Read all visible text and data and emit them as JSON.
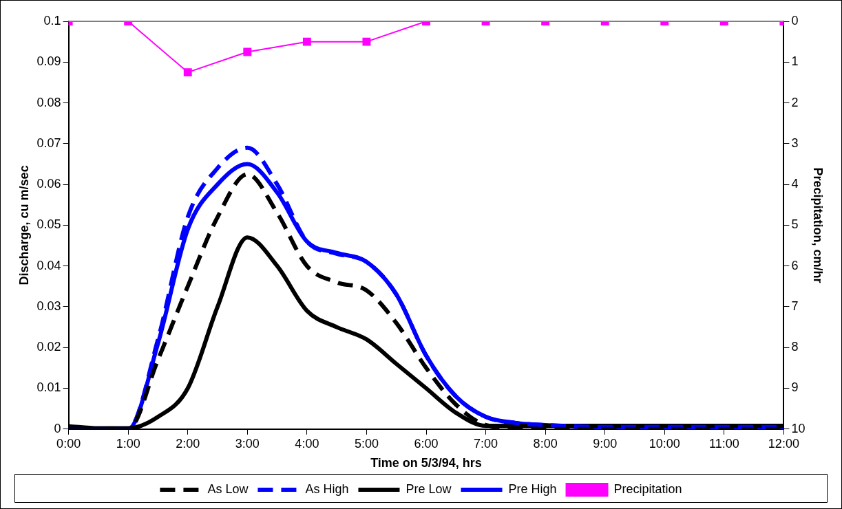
{
  "chart_data": {
    "type": "line",
    "xlabel": "Time on 5/3/94, hrs",
    "ylabel": "Discharge, cu m/sec",
    "y2label": "Precipitation, cm/hr",
    "x": [
      0,
      0.5,
      1,
      1.5,
      2,
      2.5,
      3,
      3.5,
      4,
      4.5,
      5,
      5.5,
      6,
      6.5,
      7,
      7.5,
      8,
      9,
      10,
      11,
      12
    ],
    "series": [
      {
        "name": "As Low",
        "color": "#000000",
        "line_style": "dashed",
        "marker": "none",
        "values": [
          0,
          0,
          0,
          0.017,
          0.035,
          0.052,
          0.0625,
          0.053,
          0.04,
          0.036,
          0.034,
          0.026,
          0.015,
          0.006,
          0.001,
          0.0003,
          0,
          0,
          0,
          0,
          0
        ]
      },
      {
        "name": "As High",
        "color": "#0000ff",
        "line_style": "dashed",
        "marker": "none",
        "values": [
          0,
          0,
          0,
          0.022,
          0.052,
          0.064,
          0.069,
          0.06,
          0.046,
          0.043,
          0.041,
          0.033,
          0.018,
          0.008,
          0.003,
          0.0015,
          0.001,
          0.0005,
          0.0005,
          0.0005,
          0.0005
        ]
      },
      {
        "name": "Pre Low",
        "color": "#000000",
        "line_style": "solid",
        "marker": "none",
        "values": [
          0.0007,
          0.0002,
          0.0002,
          0.003,
          0.01,
          0.03,
          0.047,
          0.04,
          0.029,
          0.025,
          0.022,
          0.016,
          0.01,
          0.004,
          0.0008,
          0.0008,
          0.0008,
          0.0008,
          0.0008,
          0.0008,
          0.0008
        ]
      },
      {
        "name": "Pre High",
        "color": "#0000ff",
        "line_style": "solid",
        "marker": "none",
        "values": [
          0,
          0,
          0,
          0.021,
          0.049,
          0.06,
          0.065,
          0.058,
          0.046,
          0.0432,
          0.041,
          0.033,
          0.018,
          0.008,
          0.003,
          0.0015,
          0.001,
          0.0005,
          0.0005,
          0.0005,
          0.0005
        ]
      },
      {
        "name": "Precipitation",
        "color": "#ff00ff",
        "line_style": "solid",
        "marker": "square",
        "axis": "y2",
        "x": [
          0,
          1,
          2,
          3,
          4,
          5,
          6,
          7,
          8,
          9,
          10,
          11,
          12
        ],
        "values": [
          0,
          0,
          1.25,
          0.75,
          0.5,
          0.5,
          0,
          0,
          0,
          0,
          0,
          0,
          0
        ]
      }
    ],
    "xlim": [
      0,
      12
    ],
    "xticks": [
      {
        "value": 0,
        "label": "0:00"
      },
      {
        "value": 1,
        "label": "1:00"
      },
      {
        "value": 2,
        "label": "2:00"
      },
      {
        "value": 3,
        "label": "3:00"
      },
      {
        "value": 4,
        "label": "4:00"
      },
      {
        "value": 5,
        "label": "5:00"
      },
      {
        "value": 6,
        "label": "6:00"
      },
      {
        "value": 7,
        "label": "7:00"
      },
      {
        "value": 8,
        "label": "8:00"
      },
      {
        "value": 9,
        "label": "9:00"
      },
      {
        "value": 10,
        "label": "10:00"
      },
      {
        "value": 11,
        "label": "11:00"
      },
      {
        "value": 12,
        "label": "12:00"
      }
    ],
    "ylim": [
      0,
      0.1
    ],
    "yticks": [
      0,
      0.01,
      0.02,
      0.03,
      0.04,
      0.05,
      0.06,
      0.07,
      0.08,
      0.09,
      0.1
    ],
    "y2lim": [
      10,
      0
    ],
    "y2ticks": [
      0,
      1,
      2,
      3,
      4,
      5,
      6,
      7,
      8,
      9,
      10
    ],
    "grid": false,
    "legend": "bottom"
  }
}
